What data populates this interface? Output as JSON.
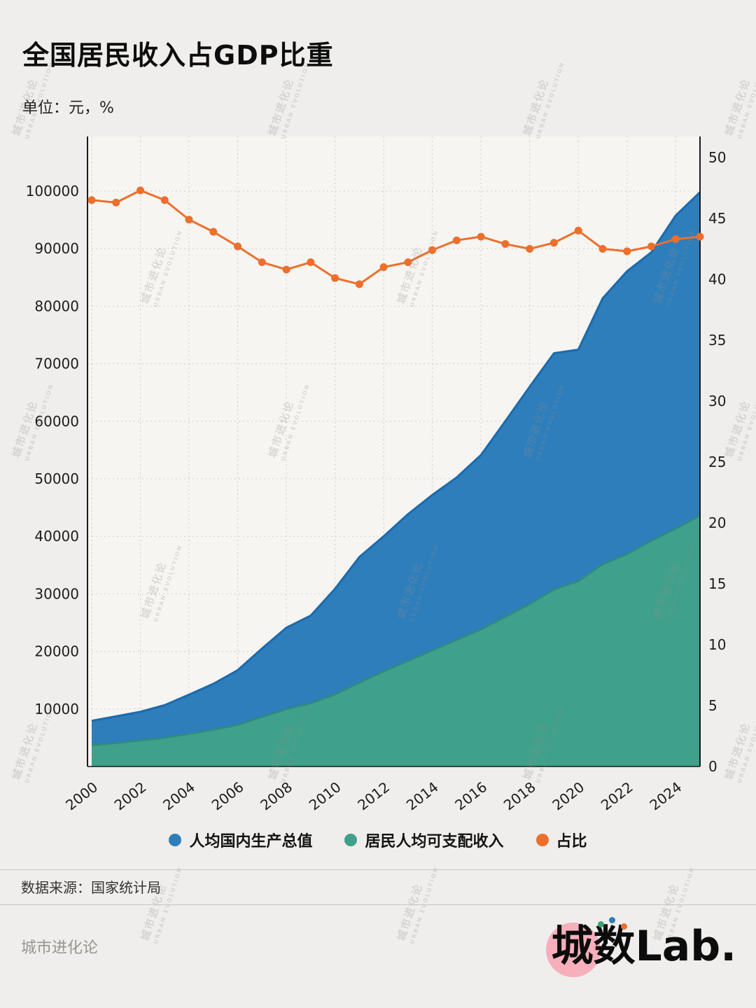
{
  "page": {
    "title": "全国居民收入占GDP比重",
    "subtitle": "单位：元，%",
    "source": "数据来源：国家统计局",
    "footer_left": "城市进化论",
    "logo_text": "城数Lab.",
    "watermark": {
      "line1": "城市进化论",
      "line2": "URBAN EVOLUTION"
    }
  },
  "legend": [
    {
      "label": "人均国内生产总值",
      "color": "#2e7ebc"
    },
    {
      "label": "居民人均可支配收入",
      "color": "#3fa18b"
    },
    {
      "label": "占比",
      "color": "#ed6f2d"
    }
  ],
  "colors": {
    "page_bg": "#efeeec",
    "plot_bg": "#f6f5f1",
    "grid": "#cfcdc7",
    "axis": "#1a1a1a",
    "tick_text": "#1c1c1c",
    "logo_pink": "#f7afbc"
  },
  "chart_data": {
    "type": "area",
    "title": "全国居民收入占GDP比重",
    "unit_note": "单位：元，%",
    "xlabel": "",
    "ylabel_left": "元",
    "ylabel_right": "%",
    "grid": true,
    "legend_position": "bottom",
    "x": [
      2000,
      2001,
      2002,
      2003,
      2004,
      2005,
      2006,
      2007,
      2008,
      2009,
      2010,
      2011,
      2012,
      2013,
      2014,
      2015,
      2016,
      2017,
      2018,
      2019,
      2020,
      2021,
      2022,
      2023,
      2024,
      2025
    ],
    "x_ticks": [
      2000,
      2002,
      2004,
      2006,
      2008,
      2010,
      2012,
      2014,
      2016,
      2018,
      2020,
      2022,
      2024
    ],
    "left_axis": {
      "min": 0,
      "max": 110000,
      "ticks": [
        10000,
        20000,
        30000,
        40000,
        50000,
        60000,
        70000,
        80000,
        90000,
        100000
      ]
    },
    "right_axis": {
      "min": 0,
      "max": 52,
      "ticks": [
        0,
        5,
        10,
        15,
        20,
        25,
        30,
        35,
        40,
        45,
        50
      ]
    },
    "series": [
      {
        "name": "人均国内生产总值",
        "type": "area",
        "axis": "left",
        "color": "#2e7ebc",
        "edge_color": "#1b6aad",
        "values": [
          7942,
          8717,
          9506,
          10666,
          12487,
          14368,
          16738,
          20505,
          24121,
          26222,
          30876,
          36403,
          40007,
          43852,
          47203,
          50237,
          54139,
          60014,
          66006,
          71828,
          72447,
          81370,
          86072,
          89358,
          95749,
          99800
        ]
      },
      {
        "name": "居民人均可支配收入",
        "type": "area",
        "axis": "left",
        "color": "#3fa18b",
        "edge_color": "#2e8d79",
        "values": [
          3712,
          4058,
          4519,
          4993,
          5644,
          6367,
          7229,
          8583,
          9957,
          10977,
          12520,
          14551,
          16510,
          18311,
          20167,
          21966,
          23821,
          25974,
          28228,
          30733,
          32189,
          35128,
          36883,
          39218,
          41314,
          43600
        ]
      },
      {
        "name": "占比",
        "type": "line",
        "axis": "right",
        "color": "#ed6f2d",
        "edge_color": "#ed6f2d",
        "values": [
          46.5,
          46.3,
          47.3,
          46.5,
          44.9,
          43.9,
          42.7,
          41.4,
          40.8,
          41.4,
          40.1,
          39.6,
          41.0,
          41.4,
          42.4,
          43.2,
          43.5,
          42.9,
          42.5,
          43.0,
          44.0,
          42.5,
          42.3,
          42.7,
          43.3,
          43.5
        ]
      }
    ]
  }
}
